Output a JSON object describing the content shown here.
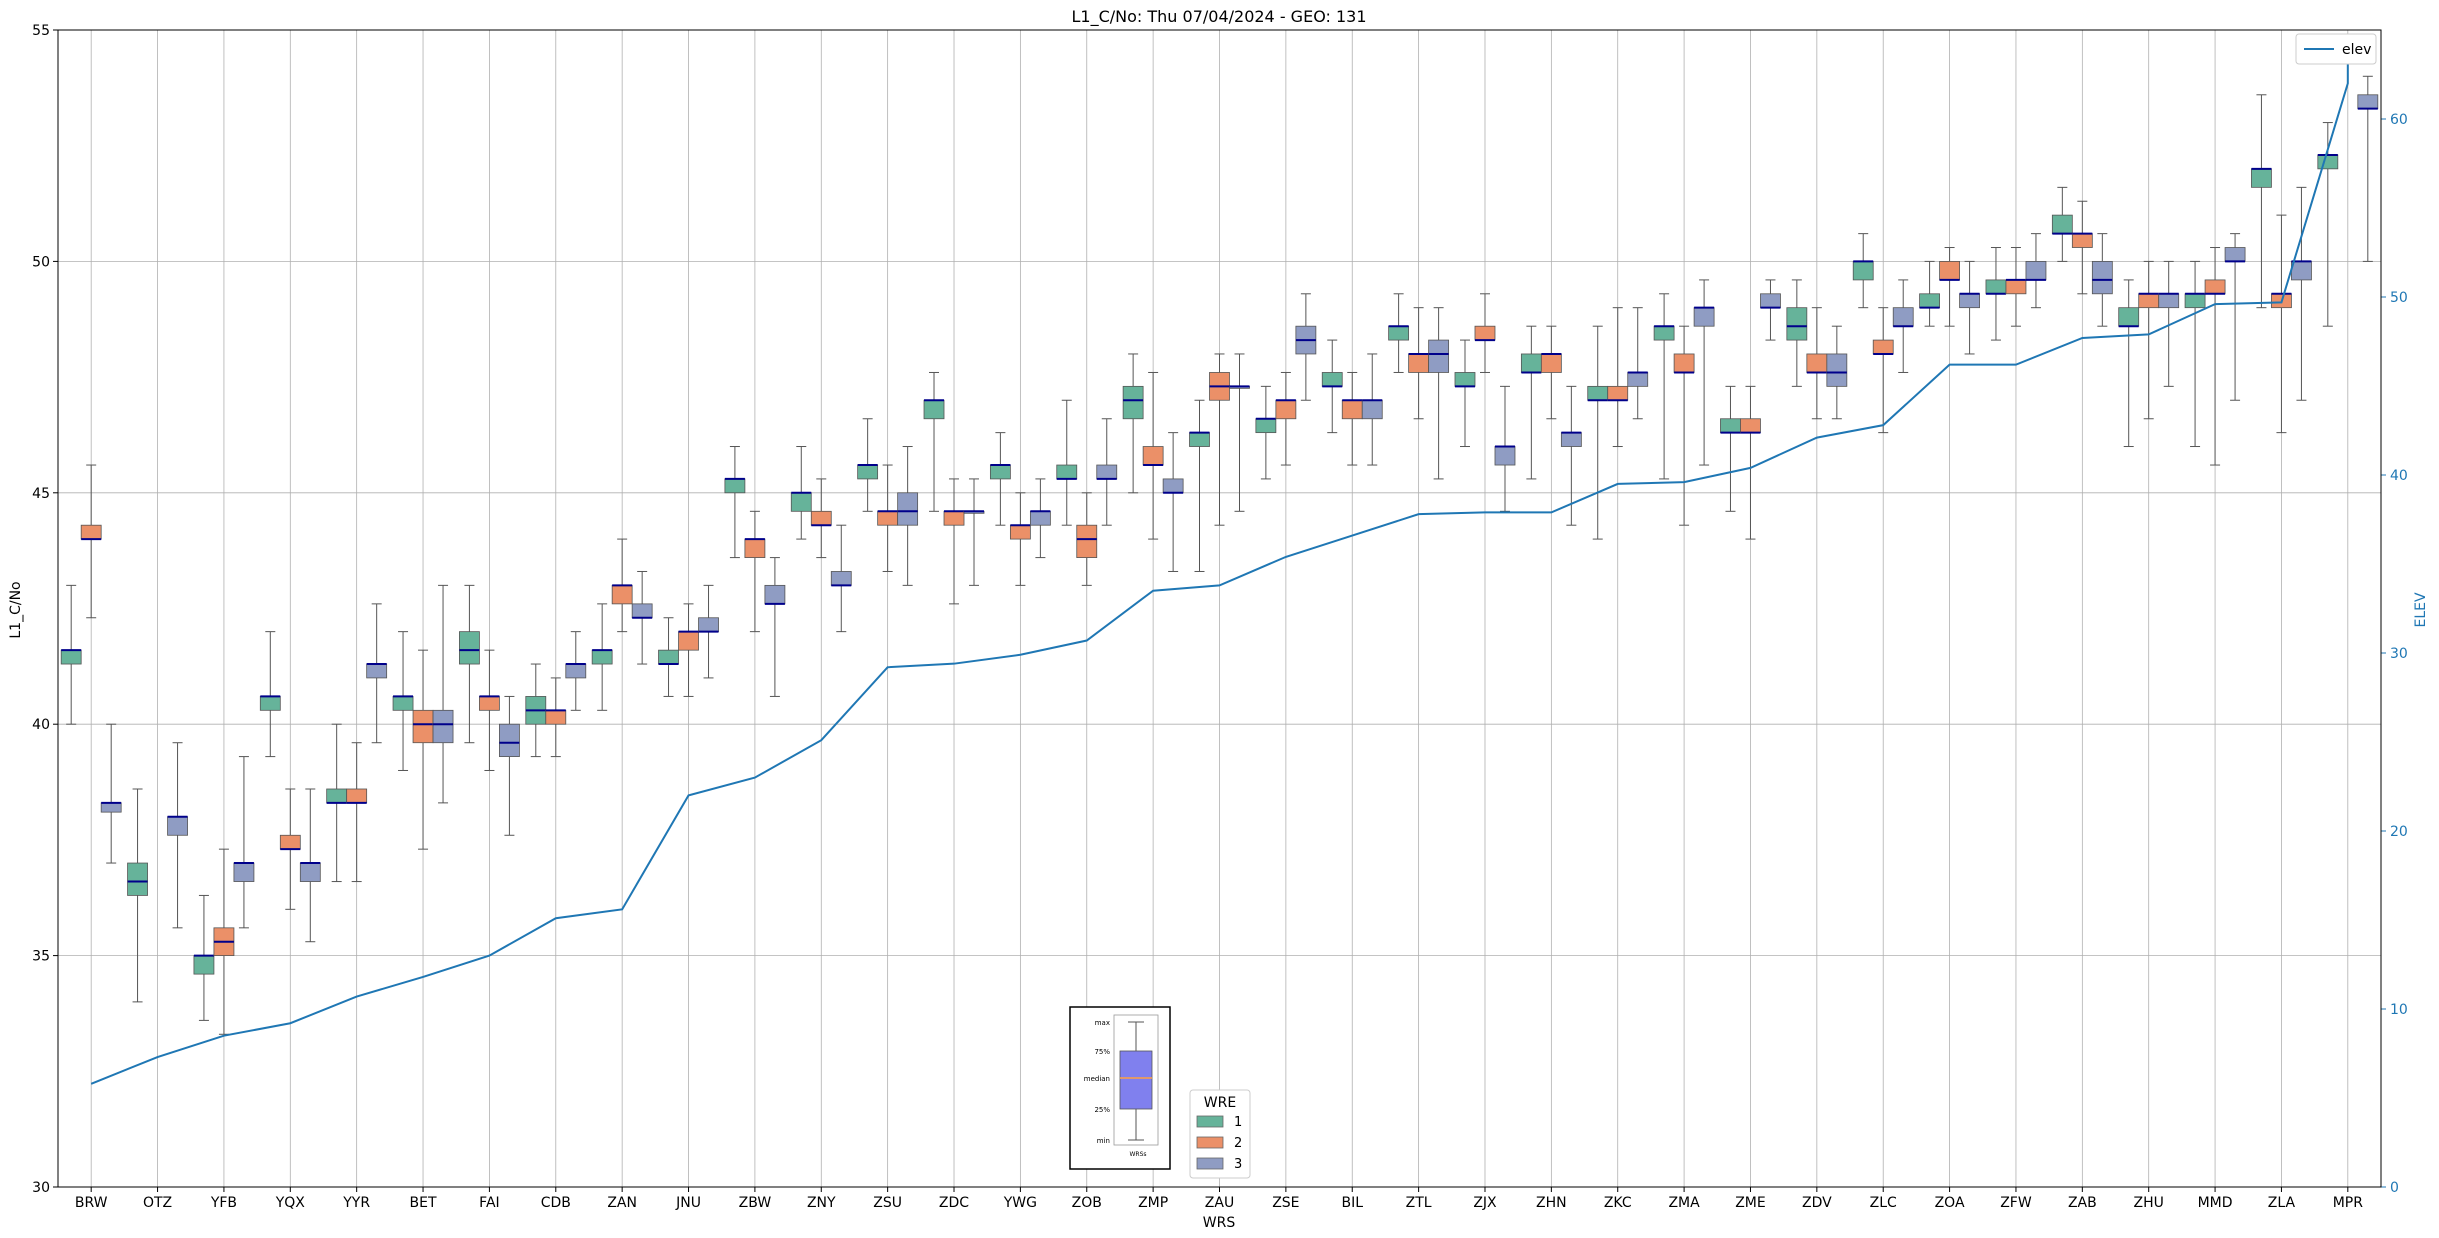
{
  "chart_data": {
    "type": "boxplot",
    "title": "L1_C/No: Thu 07/04/2024 - GEO: 131",
    "xlabel": "WRS",
    "ylabel": "L1_C/No",
    "y2label": "ELEV",
    "ylim": [
      30,
      55
    ],
    "y2lim": [
      0,
      65
    ],
    "yticks": [
      30,
      35,
      40,
      45,
      50,
      55
    ],
    "y2ticks": [
      0,
      10,
      20,
      30,
      40,
      50,
      60
    ],
    "grid": true,
    "categories": [
      "BRW",
      "OTZ",
      "YFB",
      "YQX",
      "YYR",
      "BET",
      "FAI",
      "CDB",
      "ZAN",
      "JNU",
      "ZBW",
      "ZNY",
      "ZSU",
      "ZDC",
      "YWG",
      "ZOB",
      "ZMP",
      "ZAU",
      "ZSE",
      "BIL",
      "ZTL",
      "ZJX",
      "ZHN",
      "ZKC",
      "ZMA",
      "ZME",
      "ZDV",
      "ZLC",
      "ZOA",
      "ZFW",
      "ZAB",
      "ZHU",
      "MMD",
      "ZLA",
      "MPR"
    ],
    "group_colors": {
      "1": "#66b39a",
      "2": "#eb9068",
      "3": "#8f9cc3"
    },
    "median_color": "#00008b",
    "whisker_color": "#555555",
    "boxes": [
      {
        "cat": "BRW",
        "g": 1,
        "min": 40.0,
        "q1": 41.3,
        "med": 41.6,
        "q3": 41.6,
        "max": 43.0
      },
      {
        "cat": "BRW",
        "g": 2,
        "min": 42.3,
        "q1": 44.0,
        "med": 44.0,
        "q3": 44.3,
        "max": 45.6
      },
      {
        "cat": "BRW",
        "g": 3,
        "min": 37.0,
        "q1": 38.1,
        "med": 38.3,
        "q3": 38.3,
        "max": 40.0
      },
      {
        "cat": "OTZ",
        "g": 1,
        "min": 34.0,
        "q1": 36.3,
        "med": 36.6,
        "q3": 37.0,
        "max": 38.6
      },
      {
        "cat": "OTZ",
        "g": 3,
        "min": 35.6,
        "q1": 37.6,
        "med": 38.0,
        "q3": 38.0,
        "max": 39.6
      },
      {
        "cat": "YFB",
        "g": 1,
        "min": 33.6,
        "q1": 34.6,
        "med": 35.0,
        "q3": 35.0,
        "max": 36.3
      },
      {
        "cat": "YFB",
        "g": 2,
        "min": 33.3,
        "q1": 35.0,
        "med": 35.3,
        "q3": 35.6,
        "max": 37.3
      },
      {
        "cat": "YFB",
        "g": 3,
        "min": 35.6,
        "q1": 36.6,
        "med": 37.0,
        "q3": 37.0,
        "max": 39.3
      },
      {
        "cat": "YQX",
        "g": 1,
        "min": 39.3,
        "q1": 40.3,
        "med": 40.6,
        "q3": 40.6,
        "max": 42.0
      },
      {
        "cat": "YQX",
        "g": 2,
        "min": 36.0,
        "q1": 37.3,
        "med": 37.3,
        "q3": 37.6,
        "max": 38.6
      },
      {
        "cat": "YQX",
        "g": 3,
        "min": 35.3,
        "q1": 36.6,
        "med": 37.0,
        "q3": 37.0,
        "max": 38.6
      },
      {
        "cat": "YYR",
        "g": 1,
        "min": 36.6,
        "q1": 38.3,
        "med": 38.3,
        "q3": 38.6,
        "max": 40.0
      },
      {
        "cat": "YYR",
        "g": 2,
        "min": 36.6,
        "q1": 38.3,
        "med": 38.3,
        "q3": 38.6,
        "max": 39.6
      },
      {
        "cat": "YYR",
        "g": 3,
        "min": 39.6,
        "q1": 41.0,
        "med": 41.3,
        "q3": 41.3,
        "max": 42.6
      },
      {
        "cat": "BET",
        "g": 1,
        "min": 39.0,
        "q1": 40.3,
        "med": 40.6,
        "q3": 40.6,
        "max": 42.0
      },
      {
        "cat": "BET",
        "g": 2,
        "min": 37.3,
        "q1": 39.6,
        "med": 40.0,
        "q3": 40.3,
        "max": 41.6
      },
      {
        "cat": "BET",
        "g": 3,
        "min": 38.3,
        "q1": 39.6,
        "med": 40.0,
        "q3": 40.3,
        "max": 43.0
      },
      {
        "cat": "FAI",
        "g": 1,
        "min": 39.6,
        "q1": 41.3,
        "med": 41.6,
        "q3": 42.0,
        "max": 43.0
      },
      {
        "cat": "FAI",
        "g": 2,
        "min": 39.0,
        "q1": 40.3,
        "med": 40.6,
        "q3": 40.6,
        "max": 41.6
      },
      {
        "cat": "FAI",
        "g": 3,
        "min": 37.6,
        "q1": 39.3,
        "med": 39.6,
        "q3": 40.0,
        "max": 40.6
      },
      {
        "cat": "CDB",
        "g": 1,
        "min": 39.3,
        "q1": 40.0,
        "med": 40.3,
        "q3": 40.6,
        "max": 41.3
      },
      {
        "cat": "CDB",
        "g": 2,
        "min": 39.3,
        "q1": 40.0,
        "med": 40.3,
        "q3": 40.3,
        "max": 41.0
      },
      {
        "cat": "CDB",
        "g": 3,
        "min": 40.3,
        "q1": 41.0,
        "med": 41.3,
        "q3": 41.3,
        "max": 42.0
      },
      {
        "cat": "ZAN",
        "g": 1,
        "min": 40.3,
        "q1": 41.3,
        "med": 41.6,
        "q3": 41.6,
        "max": 42.6
      },
      {
        "cat": "ZAN",
        "g": 2,
        "min": 42.0,
        "q1": 42.6,
        "med": 43.0,
        "q3": 43.0,
        "max": 44.0
      },
      {
        "cat": "ZAN",
        "g": 3,
        "min": 41.3,
        "q1": 42.3,
        "med": 42.3,
        "q3": 42.6,
        "max": 43.3
      },
      {
        "cat": "JNU",
        "g": 1,
        "min": 40.6,
        "q1": 41.3,
        "med": 41.3,
        "q3": 41.6,
        "max": 42.3
      },
      {
        "cat": "JNU",
        "g": 2,
        "min": 40.6,
        "q1": 41.6,
        "med": 42.0,
        "q3": 42.0,
        "max": 42.6
      },
      {
        "cat": "JNU",
        "g": 3,
        "min": 41.0,
        "q1": 42.0,
        "med": 42.0,
        "q3": 42.3,
        "max": 43.0
      },
      {
        "cat": "ZBW",
        "g": 1,
        "min": 43.6,
        "q1": 45.0,
        "med": 45.3,
        "q3": 45.3,
        "max": 46.0
      },
      {
        "cat": "ZBW",
        "g": 2,
        "min": 42.0,
        "q1": 43.6,
        "med": 44.0,
        "q3": 44.0,
        "max": 44.6
      },
      {
        "cat": "ZBW",
        "g": 3,
        "min": 40.6,
        "q1": 42.6,
        "med": 42.6,
        "q3": 43.0,
        "max": 43.6
      },
      {
        "cat": "ZNY",
        "g": 1,
        "min": 44.0,
        "q1": 44.6,
        "med": 45.0,
        "q3": 45.0,
        "max": 46.0
      },
      {
        "cat": "ZNY",
        "g": 2,
        "min": 43.6,
        "q1": 44.3,
        "med": 44.3,
        "q3": 44.6,
        "max": 45.3
      },
      {
        "cat": "ZNY",
        "g": 3,
        "min": 42.0,
        "q1": 43.0,
        "med": 43.0,
        "q3": 43.3,
        "max": 44.3
      },
      {
        "cat": "ZSU",
        "g": 1,
        "min": 44.6,
        "q1": 45.3,
        "med": 45.6,
        "q3": 45.6,
        "max": 46.6
      },
      {
        "cat": "ZSU",
        "g": 2,
        "min": 43.3,
        "q1": 44.3,
        "med": 44.6,
        "q3": 44.6,
        "max": 45.6
      },
      {
        "cat": "ZSU",
        "g": 3,
        "min": 43.0,
        "q1": 44.3,
        "med": 44.6,
        "q3": 45.0,
        "max": 46.0
      },
      {
        "cat": "ZDC",
        "g": 1,
        "min": 44.6,
        "q1": 46.6,
        "med": 47.0,
        "q3": 47.0,
        "max": 47.6
      },
      {
        "cat": "ZDC",
        "g": 2,
        "min": 42.6,
        "q1": 44.3,
        "med": 44.6,
        "q3": 44.6,
        "max": 45.3
      },
      {
        "cat": "ZDC",
        "g": 3,
        "min": 43.0,
        "q1": 44.6,
        "med": 44.6,
        "q3": 44.6,
        "max": 45.3
      },
      {
        "cat": "YWG",
        "g": 1,
        "min": 44.3,
        "q1": 45.3,
        "med": 45.6,
        "q3": 45.6,
        "max": 46.3
      },
      {
        "cat": "YWG",
        "g": 2,
        "min": 43.0,
        "q1": 44.0,
        "med": 44.3,
        "q3": 44.3,
        "max": 45.0
      },
      {
        "cat": "YWG",
        "g": 3,
        "min": 43.6,
        "q1": 44.3,
        "med": 44.6,
        "q3": 44.6,
        "max": 45.3
      },
      {
        "cat": "ZOB",
        "g": 1,
        "min": 44.3,
        "q1": 45.3,
        "med": 45.3,
        "q3": 45.6,
        "max": 47.0
      },
      {
        "cat": "ZOB",
        "g": 2,
        "min": 43.0,
        "q1": 43.6,
        "med": 44.0,
        "q3": 44.3,
        "max": 45.0
      },
      {
        "cat": "ZOB",
        "g": 3,
        "min": 44.3,
        "q1": 45.3,
        "med": 45.3,
        "q3": 45.6,
        "max": 46.6
      },
      {
        "cat": "ZMP",
        "g": 1,
        "min": 45.0,
        "q1": 46.6,
        "med": 47.0,
        "q3": 47.3,
        "max": 48.0
      },
      {
        "cat": "ZMP",
        "g": 2,
        "min": 44.0,
        "q1": 45.6,
        "med": 45.6,
        "q3": 46.0,
        "max": 47.6
      },
      {
        "cat": "ZMP",
        "g": 3,
        "min": 43.3,
        "q1": 45.0,
        "med": 45.0,
        "q3": 45.3,
        "max": 46.3
      },
      {
        "cat": "ZAU",
        "g": 1,
        "min": 43.3,
        "q1": 46.0,
        "med": 46.3,
        "q3": 46.3,
        "max": 47.0
      },
      {
        "cat": "ZAU",
        "g": 2,
        "min": 44.3,
        "q1": 47.0,
        "med": 47.3,
        "q3": 47.6,
        "max": 48.0
      },
      {
        "cat": "ZAU",
        "g": 3,
        "min": 44.6,
        "q1": 47.3,
        "med": 47.3,
        "q3": 47.3,
        "max": 48.0
      },
      {
        "cat": "ZSE",
        "g": 1,
        "min": 45.3,
        "q1": 46.3,
        "med": 46.6,
        "q3": 46.6,
        "max": 47.3
      },
      {
        "cat": "ZSE",
        "g": 2,
        "min": 45.6,
        "q1": 46.6,
        "med": 47.0,
        "q3": 47.0,
        "max": 47.6
      },
      {
        "cat": "ZSE",
        "g": 3,
        "min": 47.0,
        "q1": 48.0,
        "med": 48.3,
        "q3": 48.6,
        "max": 49.3
      },
      {
        "cat": "BIL",
        "g": 1,
        "min": 46.3,
        "q1": 47.3,
        "med": 47.3,
        "q3": 47.6,
        "max": 48.3
      },
      {
        "cat": "BIL",
        "g": 2,
        "min": 45.6,
        "q1": 46.6,
        "med": 47.0,
        "q3": 47.0,
        "max": 47.6
      },
      {
        "cat": "BIL",
        "g": 3,
        "min": 45.6,
        "q1": 46.6,
        "med": 47.0,
        "q3": 47.0,
        "max": 48.0
      },
      {
        "cat": "ZTL",
        "g": 1,
        "min": 47.6,
        "q1": 48.3,
        "med": 48.6,
        "q3": 48.6,
        "max": 49.3
      },
      {
        "cat": "ZTL",
        "g": 2,
        "min": 46.6,
        "q1": 47.6,
        "med": 48.0,
        "q3": 48.0,
        "max": 49.0
      },
      {
        "cat": "ZTL",
        "g": 3,
        "min": 45.3,
        "q1": 47.6,
        "med": 48.0,
        "q3": 48.3,
        "max": 49.0
      },
      {
        "cat": "ZJX",
        "g": 1,
        "min": 46.0,
        "q1": 47.3,
        "med": 47.3,
        "q3": 47.6,
        "max": 48.3
      },
      {
        "cat": "ZJX",
        "g": 2,
        "min": 47.6,
        "q1": 48.3,
        "med": 48.3,
        "q3": 48.6,
        "max": 49.3
      },
      {
        "cat": "ZJX",
        "g": 3,
        "min": 44.6,
        "q1": 45.6,
        "med": 46.0,
        "q3": 46.0,
        "max": 47.3
      },
      {
        "cat": "ZHN",
        "g": 1,
        "min": 45.3,
        "q1": 47.6,
        "med": 47.6,
        "q3": 48.0,
        "max": 48.6
      },
      {
        "cat": "ZHN",
        "g": 2,
        "min": 46.6,
        "q1": 47.6,
        "med": 48.0,
        "q3": 48.0,
        "max": 48.6
      },
      {
        "cat": "ZHN",
        "g": 3,
        "min": 44.3,
        "q1": 46.0,
        "med": 46.3,
        "q3": 46.3,
        "max": 47.3
      },
      {
        "cat": "ZKC",
        "g": 1,
        "min": 44.0,
        "q1": 47.0,
        "med": 47.0,
        "q3": 47.3,
        "max": 48.6
      },
      {
        "cat": "ZKC",
        "g": 2,
        "min": 46.0,
        "q1": 47.0,
        "med": 47.0,
        "q3": 47.3,
        "max": 49.0
      },
      {
        "cat": "ZKC",
        "g": 3,
        "min": 46.6,
        "q1": 47.3,
        "med": 47.6,
        "q3": 47.6,
        "max": 49.0
      },
      {
        "cat": "ZMA",
        "g": 1,
        "min": 45.3,
        "q1": 48.3,
        "med": 48.6,
        "q3": 48.6,
        "max": 49.3
      },
      {
        "cat": "ZMA",
        "g": 2,
        "min": 44.3,
        "q1": 47.6,
        "med": 47.6,
        "q3": 48.0,
        "max": 48.6
      },
      {
        "cat": "ZMA",
        "g": 3,
        "min": 45.6,
        "q1": 48.6,
        "med": 49.0,
        "q3": 49.0,
        "max": 49.6
      },
      {
        "cat": "ZME",
        "g": 1,
        "min": 44.6,
        "q1": 46.3,
        "med": 46.3,
        "q3": 46.6,
        "max": 47.3
      },
      {
        "cat": "ZME",
        "g": 2,
        "min": 44.0,
        "q1": 46.3,
        "med": 46.3,
        "q3": 46.6,
        "max": 47.3
      },
      {
        "cat": "ZME",
        "g": 3,
        "min": 48.3,
        "q1": 49.0,
        "med": 49.0,
        "q3": 49.3,
        "max": 49.6
      },
      {
        "cat": "ZDV",
        "g": 1,
        "min": 47.3,
        "q1": 48.3,
        "med": 48.6,
        "q3": 49.0,
        "max": 49.6
      },
      {
        "cat": "ZDV",
        "g": 2,
        "min": 46.6,
        "q1": 47.6,
        "med": 47.6,
        "q3": 48.0,
        "max": 49.0
      },
      {
        "cat": "ZDV",
        "g": 3,
        "min": 46.6,
        "q1": 47.3,
        "med": 47.6,
        "q3": 48.0,
        "max": 48.6
      },
      {
        "cat": "ZLC",
        "g": 1,
        "min": 49.0,
        "q1": 49.6,
        "med": 50.0,
        "q3": 50.0,
        "max": 50.6
      },
      {
        "cat": "ZLC",
        "g": 2,
        "min": 46.3,
        "q1": 48.0,
        "med": 48.0,
        "q3": 48.3,
        "max": 49.0
      },
      {
        "cat": "ZLC",
        "g": 3,
        "min": 47.6,
        "q1": 48.6,
        "med": 48.6,
        "q3": 49.0,
        "max": 49.6
      },
      {
        "cat": "ZOA",
        "g": 1,
        "min": 48.6,
        "q1": 49.0,
        "med": 49.0,
        "q3": 49.3,
        "max": 50.0
      },
      {
        "cat": "ZOA",
        "g": 2,
        "min": 48.6,
        "q1": 49.6,
        "med": 49.6,
        "q3": 50.0,
        "max": 50.3
      },
      {
        "cat": "ZOA",
        "g": 3,
        "min": 48.0,
        "q1": 49.0,
        "med": 49.3,
        "q3": 49.3,
        "max": 50.0
      },
      {
        "cat": "ZFW",
        "g": 1,
        "min": 48.3,
        "q1": 49.3,
        "med": 49.3,
        "q3": 49.6,
        "max": 50.3
      },
      {
        "cat": "ZFW",
        "g": 2,
        "min": 48.6,
        "q1": 49.3,
        "med": 49.6,
        "q3": 49.6,
        "max": 50.3
      },
      {
        "cat": "ZFW",
        "g": 3,
        "min": 49.0,
        "q1": 49.6,
        "med": 49.6,
        "q3": 50.0,
        "max": 50.6
      },
      {
        "cat": "ZAB",
        "g": 1,
        "min": 50.0,
        "q1": 50.6,
        "med": 50.6,
        "q3": 51.0,
        "max": 51.6
      },
      {
        "cat": "ZAB",
        "g": 2,
        "min": 49.3,
        "q1": 50.3,
        "med": 50.6,
        "q3": 50.6,
        "max": 51.3
      },
      {
        "cat": "ZAB",
        "g": 3,
        "min": 48.6,
        "q1": 49.3,
        "med": 49.6,
        "q3": 50.0,
        "max": 50.6
      },
      {
        "cat": "ZHU",
        "g": 1,
        "min": 46.0,
        "q1": 48.6,
        "med": 48.6,
        "q3": 49.0,
        "max": 49.6
      },
      {
        "cat": "ZHU",
        "g": 2,
        "min": 46.6,
        "q1": 49.0,
        "med": 49.3,
        "q3": 49.3,
        "max": 50.0
      },
      {
        "cat": "ZHU",
        "g": 3,
        "min": 47.3,
        "q1": 49.0,
        "med": 49.3,
        "q3": 49.3,
        "max": 50.0
      },
      {
        "cat": "MMD",
        "g": 1,
        "min": 46.0,
        "q1": 49.0,
        "med": 49.3,
        "q3": 49.3,
        "max": 50.0
      },
      {
        "cat": "MMD",
        "g": 2,
        "min": 45.6,
        "q1": 49.3,
        "med": 49.3,
        "q3": 49.6,
        "max": 50.3
      },
      {
        "cat": "MMD",
        "g": 3,
        "min": 47.0,
        "q1": 50.0,
        "med": 50.0,
        "q3": 50.3,
        "max": 50.6
      },
      {
        "cat": "ZLA",
        "g": 1,
        "min": 49.0,
        "q1": 51.6,
        "med": 52.0,
        "q3": 52.0,
        "max": 53.6
      },
      {
        "cat": "ZLA",
        "g": 2,
        "min": 46.3,
        "q1": 49.0,
        "med": 49.3,
        "q3": 49.3,
        "max": 51.0
      },
      {
        "cat": "ZLA",
        "g": 3,
        "min": 47.0,
        "q1": 49.6,
        "med": 50.0,
        "q3": 50.0,
        "max": 51.6
      },
      {
        "cat": "MPR",
        "g": 1,
        "min": 48.6,
        "q1": 52.0,
        "med": 52.3,
        "q3": 52.3,
        "max": 53.0
      },
      {
        "cat": "MPR",
        "g": 3,
        "min": 50.0,
        "q1": 53.3,
        "med": 53.3,
        "q3": 53.6,
        "max": 54.0
      }
    ],
    "elev_series": {
      "name": "elev",
      "color": "#1f77b4",
      "values": [
        5.8,
        7.3,
        8.5,
        9.2,
        10.7,
        11.8,
        13.0,
        15.1,
        15.6,
        22.0,
        23.0,
        25.1,
        29.2,
        29.4,
        29.9,
        30.7,
        33.5,
        33.8,
        35.4,
        36.6,
        37.8,
        37.9,
        37.9,
        39.5,
        39.6,
        40.4,
        42.1,
        42.8,
        46.2,
        46.2,
        47.7,
        47.9,
        49.6,
        49.7,
        62.0
      ],
      "end_value": 64.0
    },
    "legend_elev": {
      "placement": "top-right",
      "label": "elev"
    },
    "legend_wre": {
      "title": "WRE",
      "entries": [
        "1",
        "2",
        "3"
      ],
      "placement": "lower-center"
    },
    "inset_key": {
      "labels": [
        "max",
        "75%",
        "median",
        "25%",
        "min"
      ],
      "xlabel": "WRSs",
      "box_color": "#8080ee",
      "median_color": "#ffa040"
    }
  }
}
